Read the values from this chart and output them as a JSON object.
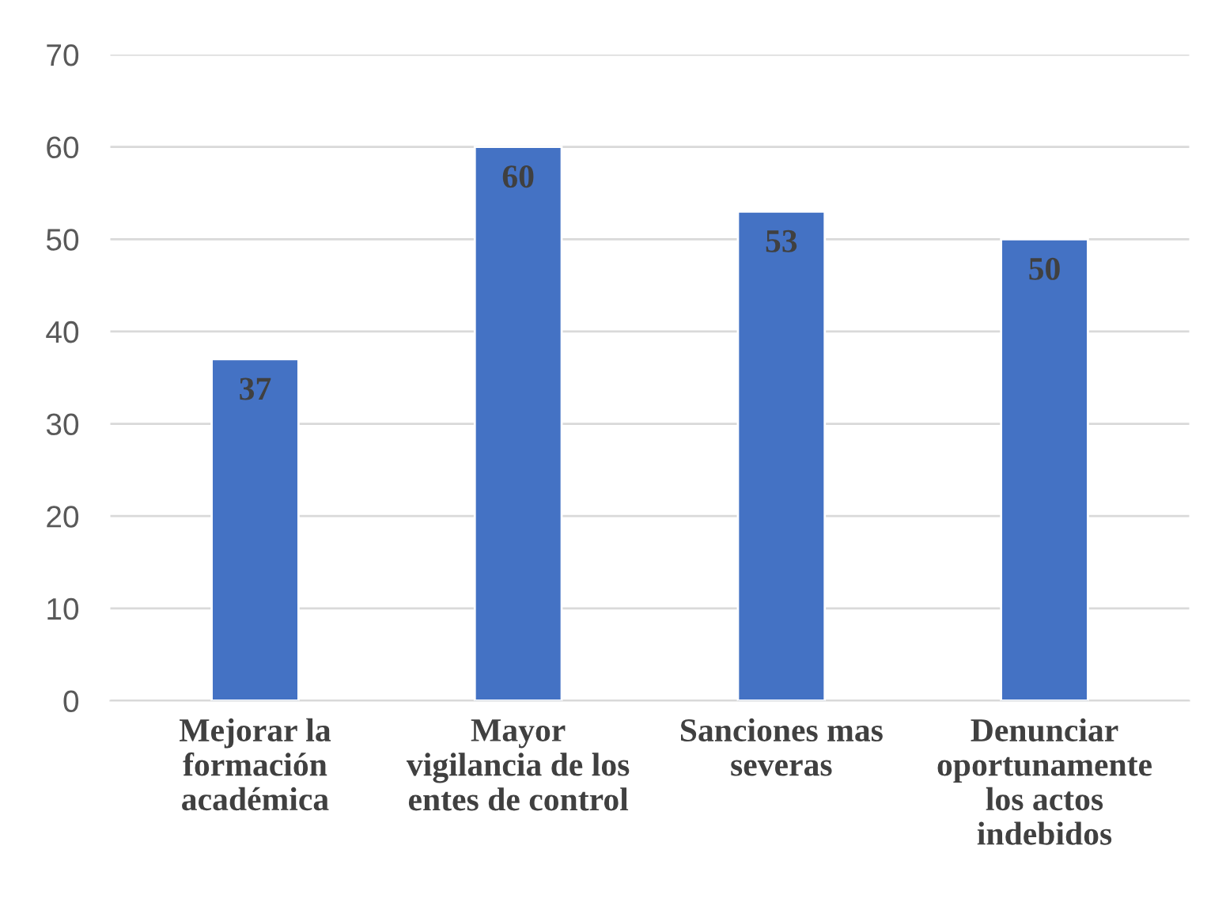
{
  "chart_data": {
    "type": "bar",
    "categories": [
      "Mejorar la\nformación\nacadémica",
      "Mayor\nvigilancia de los\nentes de control",
      "Sanciones mas\nseveras",
      "Denunciar\noportunamente\nlos actos\nindebidos"
    ],
    "values": [
      37,
      60,
      53,
      50
    ],
    "color": "#4472c4",
    "ylim": [
      0,
      70
    ],
    "yticks": [
      0,
      10,
      20,
      30,
      40,
      50,
      60,
      70
    ],
    "grid": "y",
    "data_labels": true
  }
}
